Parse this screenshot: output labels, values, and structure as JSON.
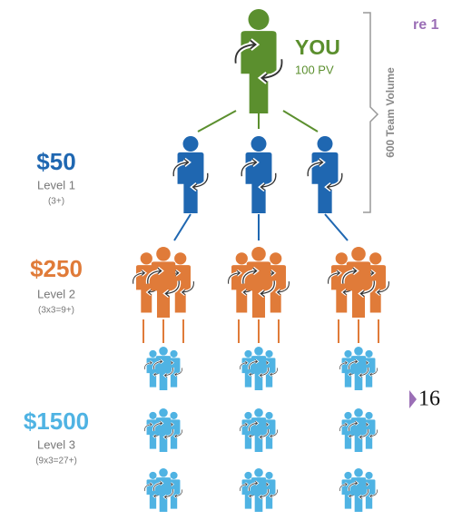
{
  "header": {
    "fragment": "re 1"
  },
  "you": {
    "label": "YOU",
    "volume": "100 PV"
  },
  "team_volume": "600 Team Volume",
  "levels": [
    {
      "amount": "$50",
      "name": "Level 1",
      "count": "(3+)"
    },
    {
      "amount": "$250",
      "name": "Level 2",
      "count": "(3x3=9+)"
    },
    {
      "amount": "$1500",
      "name": "Level 3",
      "count": "(9x3=27+)"
    }
  ],
  "page_number": "16"
}
